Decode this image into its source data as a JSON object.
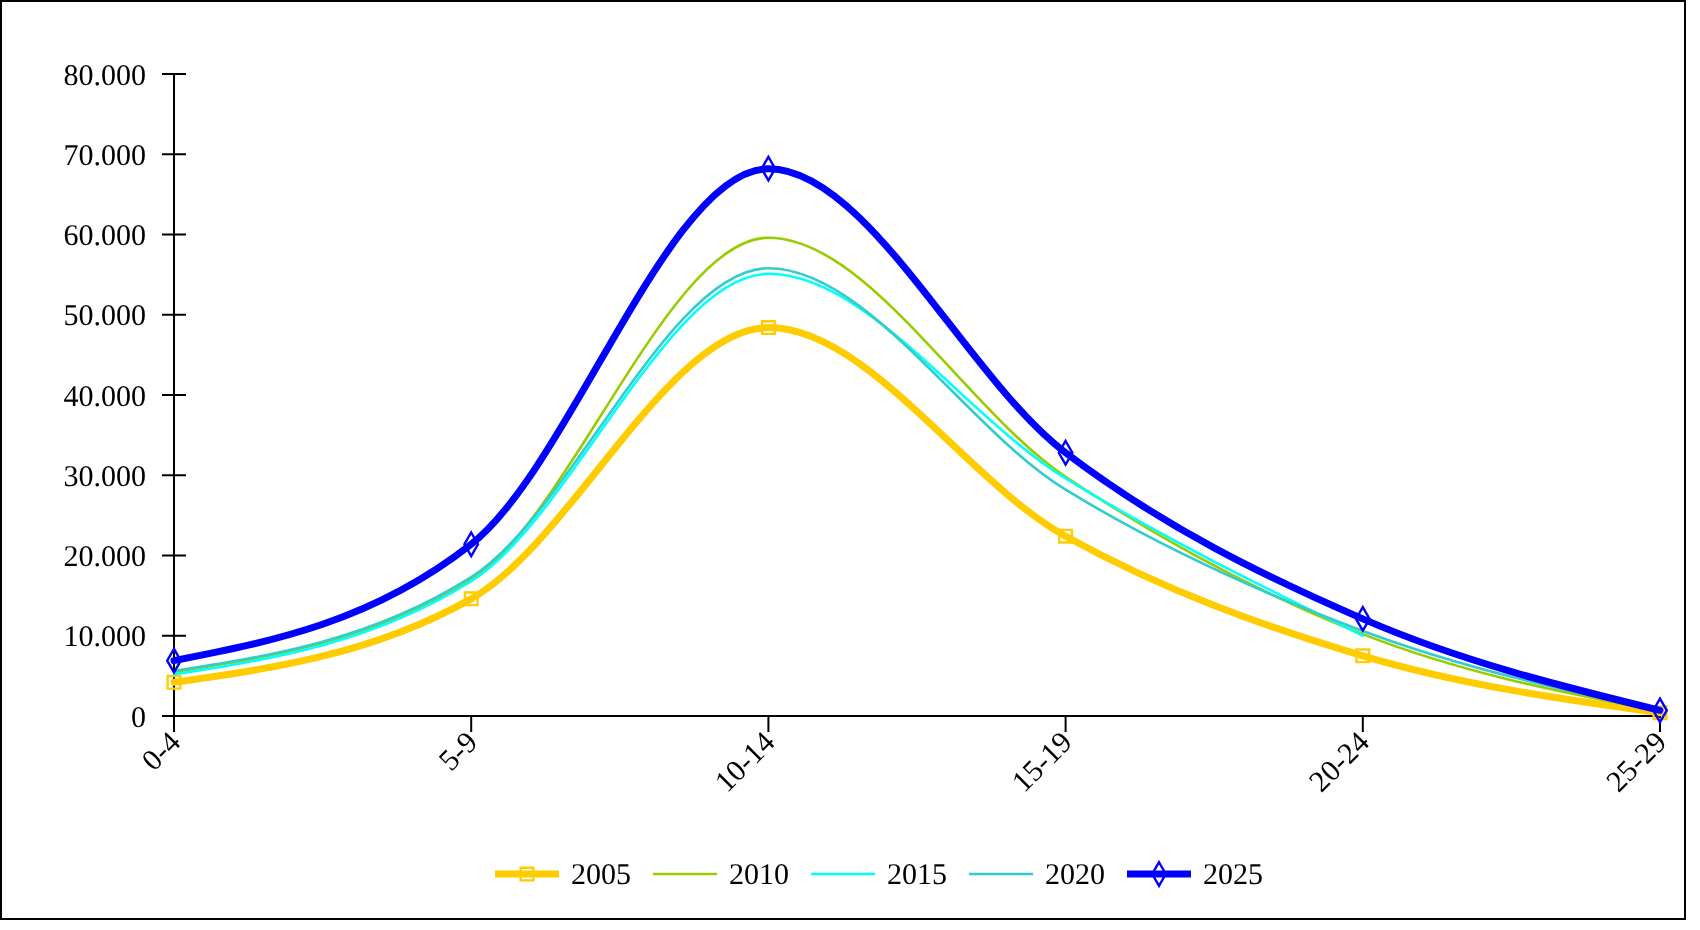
{
  "chart_data": {
    "type": "line",
    "categories": [
      "0-4",
      "5-9",
      "10-14",
      "15-19",
      "20-24",
      "25-29"
    ],
    "series": [
      {
        "name": "2005",
        "color": "#ffcc00",
        "marker": "square",
        "values": [
          4200,
          14600,
          48400,
          22400,
          7500,
          400
        ]
      },
      {
        "name": "2010",
        "color": "#99cc00",
        "marker": "none",
        "values": [
          5500,
          17000,
          59600,
          29800,
          10200,
          600
        ]
      },
      {
        "name": "2015",
        "color": "#00ffff",
        "marker": "none",
        "values": [
          5200,
          16800,
          55100,
          29600,
          10000,
          null
        ]
      },
      {
        "name": "2020",
        "color": "#33cccc",
        "marker": "none",
        "values": [
          5600,
          17300,
          55800,
          28200,
          10600,
          600
        ]
      },
      {
        "name": "2025",
        "color": "#0000ff",
        "marker": "diamond",
        "values": [
          6900,
          21400,
          68200,
          32800,
          12100,
          700
        ]
      }
    ],
    "ylim": [
      0,
      80000
    ],
    "yticks": [
      {
        "value": 0,
        "label": "0"
      },
      {
        "value": 10000,
        "label": "10.000"
      },
      {
        "value": 20000,
        "label": "20.000"
      },
      {
        "value": 30000,
        "label": "30.000"
      },
      {
        "value": 40000,
        "label": "40.000"
      },
      {
        "value": 50000,
        "label": "50.000"
      },
      {
        "value": 60000,
        "label": "60.000"
      },
      {
        "value": 70000,
        "label": "70.000"
      },
      {
        "value": 80000,
        "label": "80.000"
      }
    ],
    "grid": false,
    "legend": "bottom"
  }
}
